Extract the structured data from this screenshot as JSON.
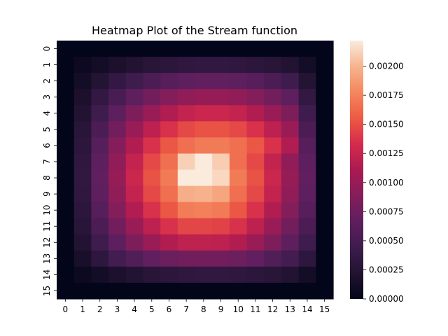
{
  "chart_data": {
    "type": "heatmap",
    "title": "Heatmap Plot of the Stream function",
    "rows": 16,
    "cols": 16,
    "xticks": [
      "0",
      "1",
      "2",
      "3",
      "4",
      "5",
      "6",
      "7",
      "8",
      "9",
      "10",
      "11",
      "12",
      "13",
      "14",
      "15"
    ],
    "yticks": [
      "0",
      "1",
      "2",
      "3",
      "4",
      "5",
      "6",
      "7",
      "8",
      "9",
      "10",
      "11",
      "12",
      "13",
      "14",
      "15"
    ],
    "vmin": 0,
    "vmax": 0.00222,
    "colorbar_ticks": [
      "0.00000",
      "0.00025",
      "0.00050",
      "0.00075",
      "0.00100",
      "0.00125",
      "0.00150",
      "0.00175",
      "0.00200"
    ],
    "colorbar_values": [
      0,
      0.00025,
      0.0005,
      0.00075,
      0.001,
      0.00125,
      0.0015,
      0.00175,
      0.002
    ],
    "colormap": "rocket",
    "values": [
      [
        0,
        0,
        0,
        0,
        0,
        0,
        0,
        0,
        0,
        0,
        0,
        0,
        0,
        0,
        0,
        0
      ],
      [
        0,
        6.1e-05,
        0.000121,
        0.000177,
        0.000227,
        0.00027,
        0.000304,
        0.000328,
        0.000341,
        0.000341,
        0.000328,
        0.000304,
        0.00027,
        0.000227,
        0.000121,
        0
      ],
      [
        0,
        0.000121,
        0.000239,
        0.00035,
        0.00045,
        0.000537,
        0.000607,
        0.000652,
        0.000676,
        0.000676,
        0.000652,
        0.000607,
        0.000537,
        0.00045,
        0.000239,
        0
      ],
      [
        0,
        0.000177,
        0.00035,
        0.000512,
        0.000659,
        0.000785,
        0.000888,
        0.000956,
        0.00099,
        0.00099,
        0.000956,
        0.000888,
        0.000785,
        0.000659,
        0.00035,
        0
      ],
      [
        0,
        0.000227,
        0.00045,
        0.000659,
        0.000847,
        0.00101,
        0.001142,
        0.00123,
        0.001273,
        0.001273,
        0.00123,
        0.001142,
        0.00101,
        0.000847,
        0.00045,
        0
      ],
      [
        0,
        0.00027,
        0.000537,
        0.000785,
        0.00101,
        0.001205,
        0.001362,
        0.001468,
        0.001519,
        0.001519,
        0.001468,
        0.001362,
        0.001205,
        0.00101,
        0.000537,
        0
      ],
      [
        0,
        0.000304,
        0.000607,
        0.000888,
        0.001142,
        0.001362,
        0.00154,
        0.00166,
        0.001717,
        0.001717,
        0.00166,
        0.00154,
        0.001362,
        0.001142,
        0.000607,
        0
      ],
      [
        0,
        0.000328,
        0.000652,
        0.000956,
        0.00123,
        0.001468,
        0.00166,
        0.00211,
        0.00222,
        0.0021,
        0.00166,
        0.001468,
        0.00123,
        0.000956,
        0.000652,
        0
      ],
      [
        0,
        0.000341,
        0.000676,
        0.00099,
        0.001273,
        0.001519,
        0.001717,
        0.00222,
        0.00222,
        0.00214,
        0.001717,
        0.001519,
        0.001273,
        0.00099,
        0.000676,
        0
      ],
      [
        0,
        0.000328,
        0.000652,
        0.000956,
        0.00123,
        0.001468,
        0.00166,
        0.00197,
        0.00199,
        0.00193,
        0.00166,
        0.001468,
        0.00123,
        0.000956,
        0.000652,
        0
      ],
      [
        0,
        0.000304,
        0.000607,
        0.000888,
        0.001142,
        0.001362,
        0.00154,
        0.00172,
        0.00174,
        0.00171,
        0.00154,
        0.001362,
        0.001142,
        0.000888,
        0.000607,
        0
      ],
      [
        0,
        0.00027,
        0.000537,
        0.000785,
        0.00101,
        0.001205,
        0.001362,
        0.00146,
        0.00146,
        0.00144,
        0.001362,
        0.001205,
        0.00101,
        0.000785,
        0.000537,
        0
      ],
      [
        0,
        0.000227,
        0.00045,
        0.000659,
        0.000847,
        0.00101,
        0.001142,
        0.00121,
        0.00121,
        0.0012,
        0.001142,
        0.00101,
        0.000847,
        0.000659,
        0.00045,
        0
      ],
      [
        0,
        0.000161,
        0.000321,
        0.00048,
        0.00058,
        0.00068,
        0.00074,
        0.00078,
        0.00078,
        0.00078,
        0.00074,
        0.00068,
        0.00058,
        0.00048,
        0.000321,
        0
      ],
      [
        0,
        6.1e-05,
        0.000121,
        0.000177,
        0.000227,
        0.00027,
        0.000304,
        0.000328,
        0.000341,
        0.000341,
        0.000328,
        0.000304,
        0.00027,
        0.000227,
        0.000121,
        0
      ],
      [
        0,
        0,
        0,
        0,
        0,
        0,
        0,
        0,
        0,
        0,
        0,
        0,
        0,
        0,
        0,
        0
      ]
    ]
  }
}
